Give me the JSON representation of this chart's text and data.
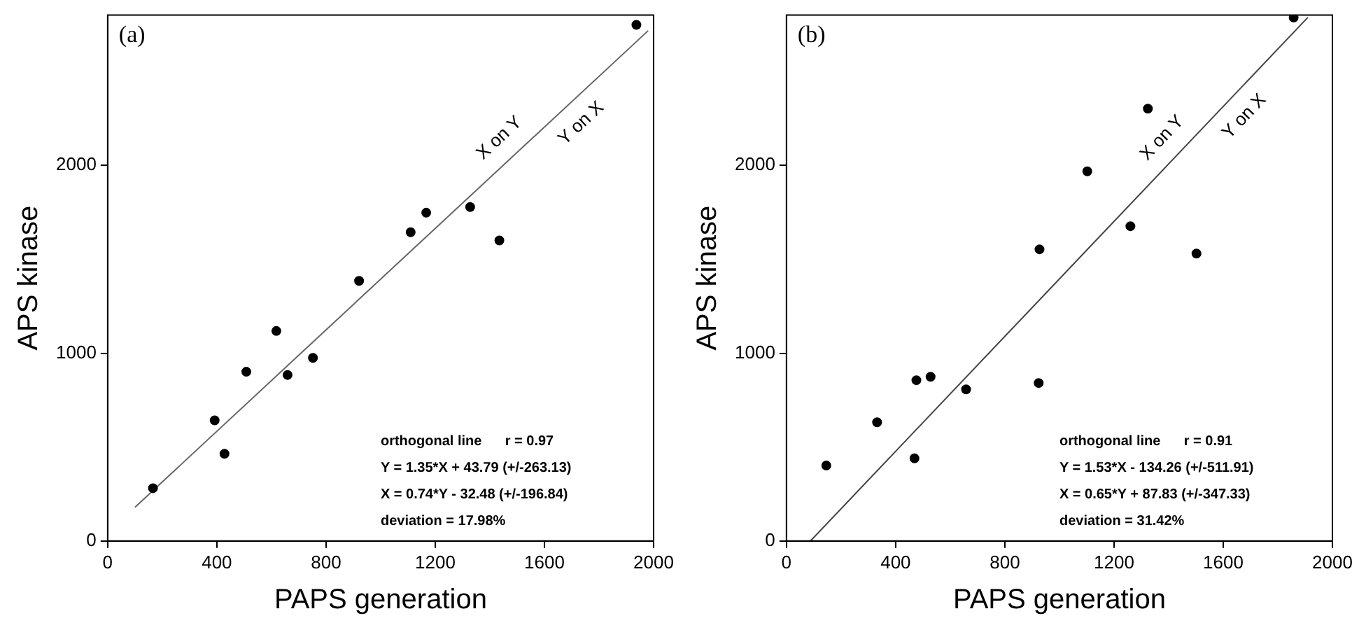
{
  "chart_data": [
    {
      "type": "scatter",
      "title": "(a)",
      "xlabel": "PAPS generation",
      "ylabel": "APS kinase",
      "xlim": [
        0,
        2000
      ],
      "ylim": [
        0,
        2800
      ],
      "xticks": [
        0,
        400,
        800,
        1200,
        1600,
        2000
      ],
      "yticks": [
        0,
        1000,
        2000
      ],
      "grid": false,
      "legend": false,
      "line_style": "solid",
      "series": [
        {
          "marker": "circle",
          "color": "#000000",
          "x": [
            166,
            392,
            428,
            508,
            618,
            659,
            752,
            921,
            1110,
            1167,
            1328,
            1435,
            1937
          ],
          "values": [
            281,
            642,
            464,
            901,
            1118,
            884,
            975,
            1385,
            1644,
            1748,
            1778,
            1600,
            2748
          ]
        },
        {
          "type": "line",
          "marker": "none",
          "color": "#666666",
          "x": [
            100,
            1980
          ],
          "values": [
            179,
            2717
          ]
        }
      ],
      "annotations": [
        "X on Y",
        "Y on X",
        "orthogonal line      r = 0.97",
        "Y = 1.35*X + 43.79 (+/-263.13)",
        "X = 0.74*Y - 32.48 (+/-196.84)",
        "deviation = 17.98%"
      ]
    },
    {
      "type": "scatter",
      "title": "(b)",
      "xlabel": "PAPS generation",
      "ylabel": "APS kinase",
      "xlim": [
        0,
        2000
      ],
      "ylim": [
        0,
        2800
      ],
      "xticks": [
        0,
        400,
        800,
        1200,
        1600,
        2000
      ],
      "yticks": [
        0,
        1000,
        2000
      ],
      "grid": false,
      "legend": false,
      "line_style": "solid",
      "series": [
        {
          "marker": "circle",
          "color": "#000000",
          "x": [
            146,
            332,
            469,
            476,
            528,
            658,
            924,
            927,
            1102,
            1260,
            1324,
            1502,
            1858
          ],
          "values": [
            402,
            632,
            440,
            856,
            874,
            807,
            841,
            1553,
            1968,
            1676,
            2302,
            1530,
            2787
          ]
        },
        {
          "type": "line",
          "marker": "none",
          "color": "#444444",
          "x": [
            88,
            1910
          ],
          "values": [
            0,
            2788
          ]
        }
      ],
      "annotations": [
        "X on Y",
        "Y on X",
        "orthogonal line      r = 0.91",
        "Y = 1.53*X - 134.26 (+/-511.91)",
        "X = 0.65*Y + 87.83 (+/-347.33)",
        "deviation = 31.42%"
      ]
    }
  ]
}
